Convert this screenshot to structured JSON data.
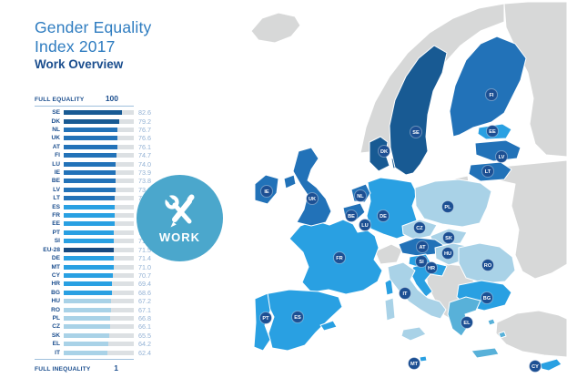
{
  "header": {
    "title": "Gender Equality Index 2017",
    "subtitle": "Work Overview"
  },
  "scale": {
    "top_label": "FULL EQUALITY",
    "top_value": "100",
    "bottom_label": "FULL INEQUALITY",
    "bottom_value": "1"
  },
  "badge": {
    "label": "WORK",
    "icon": "wrench-pencil-icon",
    "color": "#4BA7CC"
  },
  "chart_data": {
    "type": "bar",
    "title": "Gender Equality Index 2017 — Work Overview",
    "xlabel": "",
    "ylabel": "",
    "xlim": [
      1,
      100
    ],
    "categories": [
      "SE",
      "DK",
      "NL",
      "UK",
      "AT",
      "FI",
      "LU",
      "IE",
      "BE",
      "LV",
      "LT",
      "ES",
      "FR",
      "EE",
      "PT",
      "SI",
      "EU-28",
      "DE",
      "MT",
      "CY",
      "HR",
      "BG",
      "HU",
      "RO",
      "PL",
      "CZ",
      "SK",
      "EL",
      "IT"
    ],
    "values": [
      82.6,
      79.2,
      76.7,
      76.6,
      76.1,
      74.7,
      74.0,
      73.9,
      73.8,
      73.6,
      73.2,
      72.4,
      72.1,
      72.1,
      72.0,
      71.8,
      71.5,
      71.4,
      71.0,
      70.7,
      69.4,
      68.6,
      67.2,
      67.1,
      66.8,
      66.1,
      65.5,
      64.2,
      62.4
    ],
    "value_labels": [
      "82.6",
      "79.2",
      "76.7",
      "76.6",
      "76.1",
      "74.7",
      "74.0",
      "73.9",
      "73.8",
      "73.6",
      "73.2",
      "72.4",
      "72.1",
      "72.1",
      "72.0",
      "71.8",
      "71.5",
      "71.4",
      "71.0",
      "70.7",
      "69.4",
      "68.6",
      "67.2",
      "67.1",
      "66.8",
      "66.1",
      "65.5",
      "64.2",
      "62.4"
    ],
    "tiers": [
      "dark",
      "dark",
      "medium",
      "medium",
      "medium",
      "medium",
      "medium",
      "medium",
      "medium",
      "medium",
      "medium",
      "bright",
      "bright",
      "bright",
      "bright",
      "bright",
      "eu",
      "bright",
      "bright",
      "bright",
      "bright",
      "bright",
      "pale",
      "pale",
      "pale",
      "pale",
      "pale",
      "pale",
      "pale"
    ],
    "tier_colors": {
      "dark": "#185A93",
      "medium": "#2272B8",
      "bright": "#29A0E2",
      "pale": "#A9D2E7",
      "eu": "#17497F"
    },
    "track_color": "#DCE0E3",
    "legend_position": "none",
    "grid": false
  },
  "map": {
    "labels": [
      "FI",
      "SE",
      "EE",
      "LV",
      "LT",
      "DK",
      "IE",
      "UK",
      "NL",
      "BE",
      "LU",
      "DE",
      "PL",
      "CZ",
      "SK",
      "AT",
      "HU",
      "SI",
      "HR",
      "RO",
      "BG",
      "FR",
      "ES",
      "PT",
      "IT",
      "EL",
      "MT",
      "CY"
    ],
    "noneu_fill": "#D7D8D8",
    "sea_fill": "#FFFFFF",
    "border_color": "#FFFFFF",
    "label_circle_fill": "#1C4F93",
    "map_fill_overrides": {
      "EL": "#58B1D9"
    }
  }
}
